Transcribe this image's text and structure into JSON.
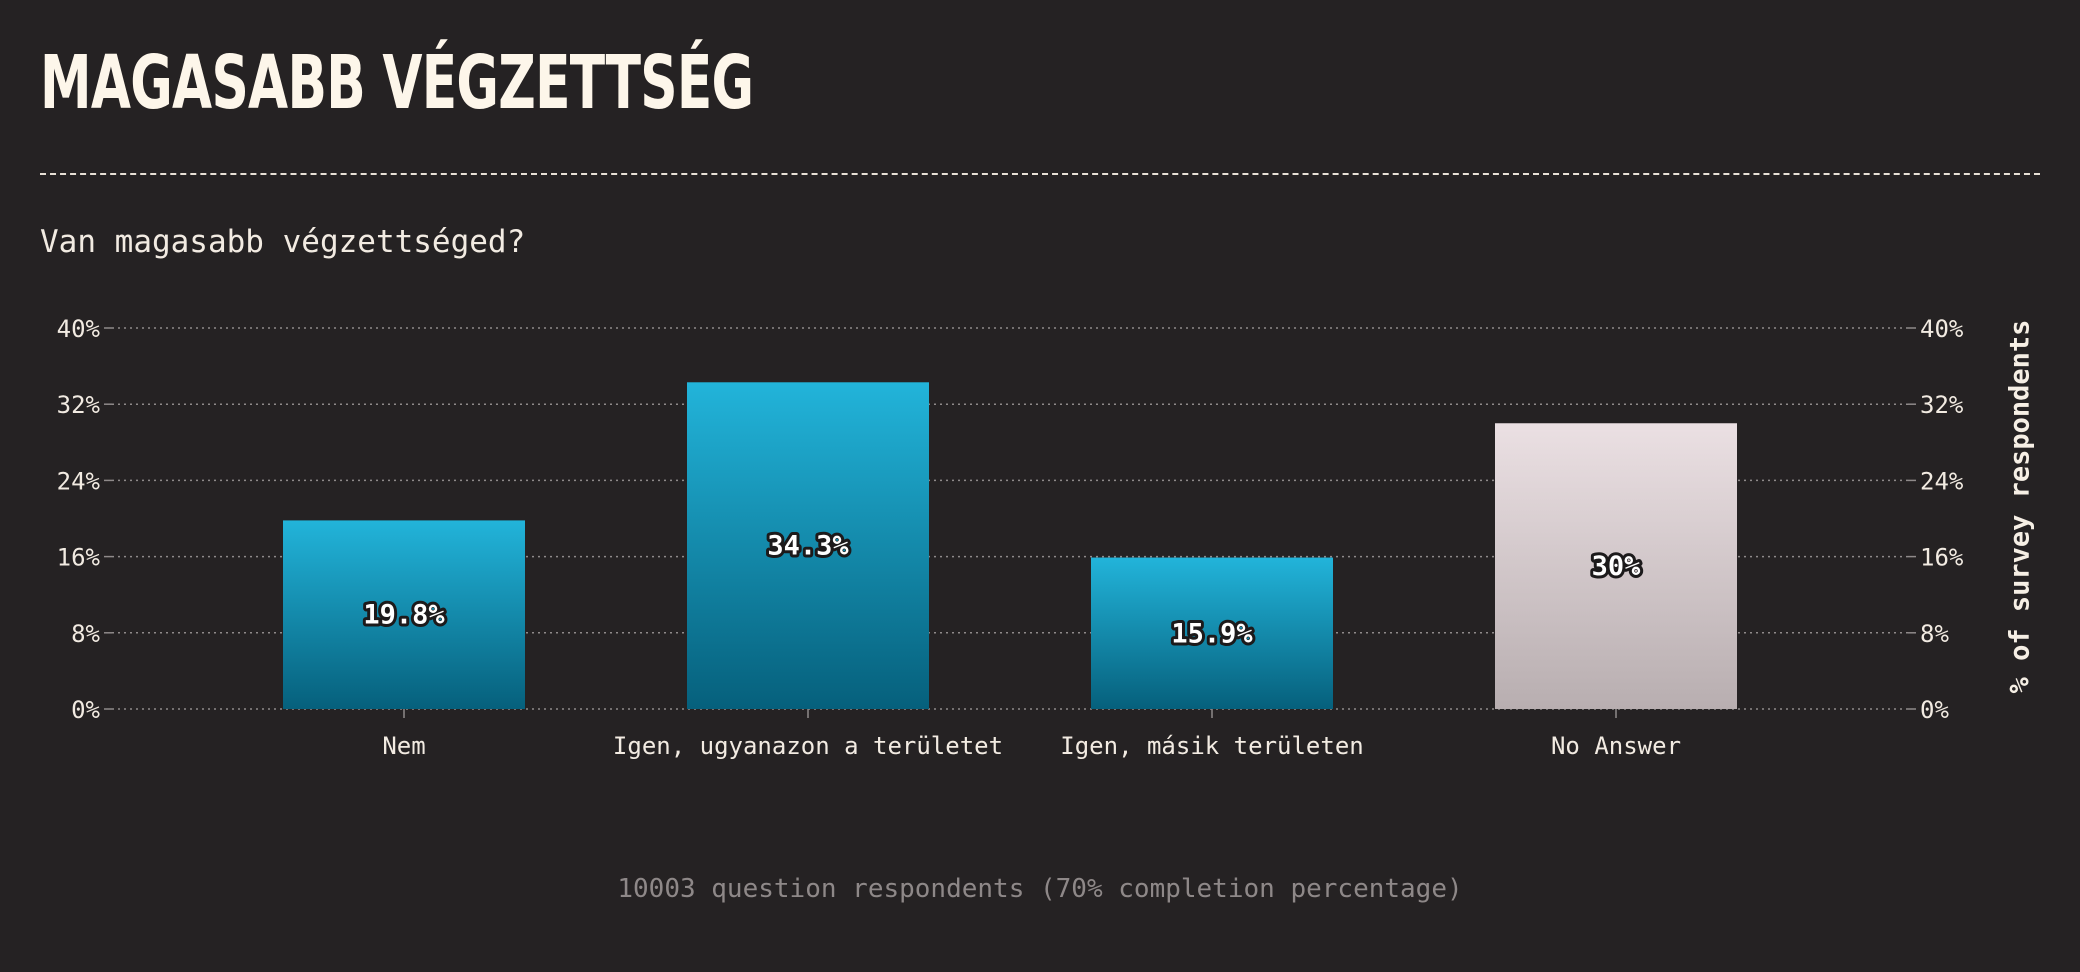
{
  "header": {
    "title": "MAGASABB VÉGZETTSÉG"
  },
  "question": "Van magasabb végzettséged?",
  "footnote": "10003 question respondents (70% completion percentage)",
  "colors": {
    "background": "#252223",
    "answer_bar_top": "#22b4da",
    "answer_bar_bottom": "#06607c",
    "no_answer_bar_top": "#ebe0e3",
    "no_answer_bar_bottom": "#b8aeb0",
    "grid": "#8f8a8a",
    "text": "#f2ebe2"
  },
  "chart_data": {
    "type": "bar",
    "categories": [
      "Nem",
      "Igen, ugyanazon a területet",
      "Igen, másik területen",
      "No Answer"
    ],
    "values": [
      19.8,
      34.3,
      15.9,
      30
    ],
    "value_labels": [
      "19.8%",
      "34.3%",
      "15.9%",
      "30%"
    ],
    "no_answer_category": "No Answer",
    "ylim": [
      0,
      40
    ],
    "yticks": [
      0,
      8,
      16,
      24,
      32,
      40
    ],
    "ytick_labels": [
      "0%",
      "8%",
      "16%",
      "24%",
      "32%",
      "40%"
    ],
    "ylabel": "% of survey respondents",
    "xlabel": "",
    "grid": true,
    "grid_style": "dotted",
    "right_axis": true
  }
}
